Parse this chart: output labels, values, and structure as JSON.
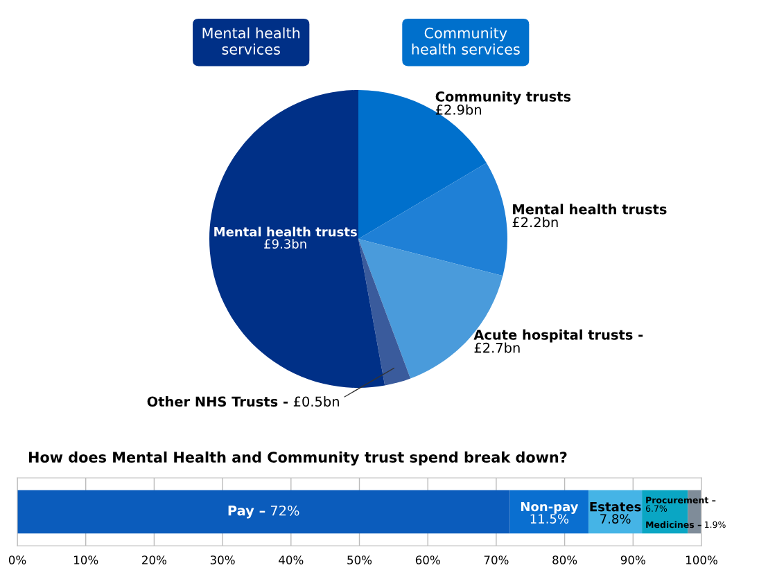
{
  "chart_data": [
    {
      "type": "pie",
      "categories": [
        "Community trusts",
        "Mental health trusts",
        "Acute hospital trusts -",
        "Other NHS Trusts -",
        "Mental health trusts"
      ],
      "colors": [
        "#0070cc",
        "#1f80d6",
        "#4a9bdb",
        "#3a5b9c",
        "#003087"
      ],
      "values": [
        2.9,
        2.2,
        2.7,
        0.5,
        9.3
      ],
      "annotations": [
        "Mental health services",
        "Community health services"
      ],
      "value_labels": [
        "£2.9bn",
        "£2.2bn",
        "£2.7bn",
        "£0.5bn",
        "£9.3bn"
      ]
    },
    {
      "type": "bar",
      "title": "How does Mental Health and Community trust spend break down?",
      "orientation": "horizontal",
      "stacked": true,
      "categories": [
        null
      ],
      "series": [
        {
          "name": "Pay –",
          "color": "#0b5cbc",
          "values": [
            72
          ],
          "value_labels": [
            "72%"
          ]
        },
        {
          "name": "Non-pay",
          "color": "#0a6fd0",
          "values": [
            11.5
          ],
          "value_labels": [
            "11.5%"
          ]
        },
        {
          "name": "Estates",
          "color": "#45b4e6",
          "values": [
            7.8
          ],
          "value_labels": [
            "7.8%"
          ]
        },
        {
          "name": "Procurement –",
          "color": "#0aa6c4",
          "values": [
            6.7
          ],
          "value_labels": [
            "6.7%"
          ]
        },
        {
          "name": "Medicines –",
          "color": "#7f8c99",
          "values": [
            1.9
          ],
          "value_labels": [
            "1.9%"
          ]
        }
      ],
      "xlim": [
        0,
        100
      ],
      "xticks": [
        {
          "value": 0,
          "label": "0%"
        },
        {
          "value": 10,
          "label": "10%"
        },
        {
          "value": 20,
          "label": "20%"
        },
        {
          "value": 30,
          "label": "30%"
        },
        {
          "value": 40,
          "label": "40%"
        },
        {
          "value": 50,
          "label": "50%"
        },
        {
          "value": 60,
          "label": "60%"
        },
        {
          "value": 70,
          "label": "70%"
        },
        {
          "value": 80,
          "label": "80%"
        },
        {
          "value": 90,
          "label": "90%"
        },
        {
          "value": 100,
          "label": "100%"
        }
      ],
      "grid": "x"
    }
  ]
}
